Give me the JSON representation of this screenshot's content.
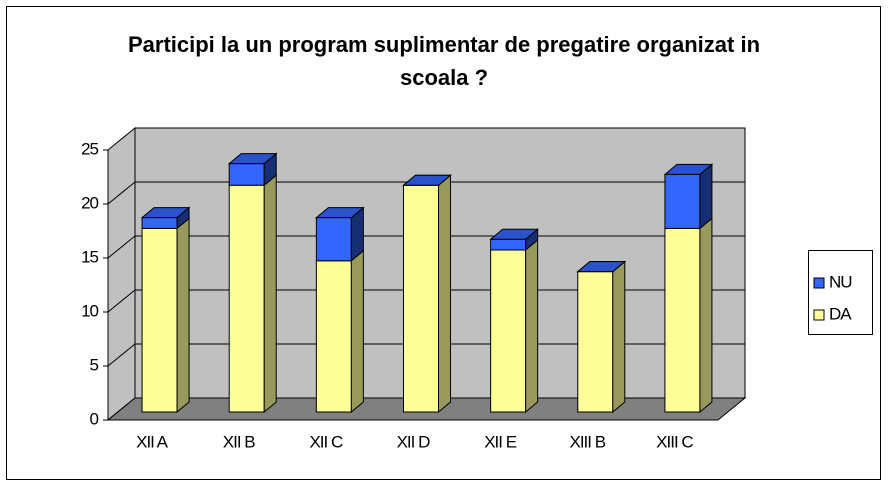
{
  "chart_data": {
    "type": "bar3d_stacked",
    "title": "Participi la un program suplimentar de pregatire organizat in scoala ?",
    "categories": [
      "XII A",
      "XII B",
      "XII C",
      "XII D",
      "XII E",
      "XIII B",
      "XIII C"
    ],
    "series": [
      {
        "name": "DA",
        "color": "#ffff99",
        "values": [
          17,
          21,
          14,
          21,
          15,
          13,
          17
        ]
      },
      {
        "name": "NU",
        "color": "#3366ff",
        "values": [
          1,
          2,
          4,
          0,
          1,
          0,
          5
        ]
      }
    ],
    "ylim": [
      0,
      25
    ],
    "yticks": [
      0,
      5,
      10,
      15,
      20,
      25
    ],
    "grid": true,
    "legend": "right"
  }
}
